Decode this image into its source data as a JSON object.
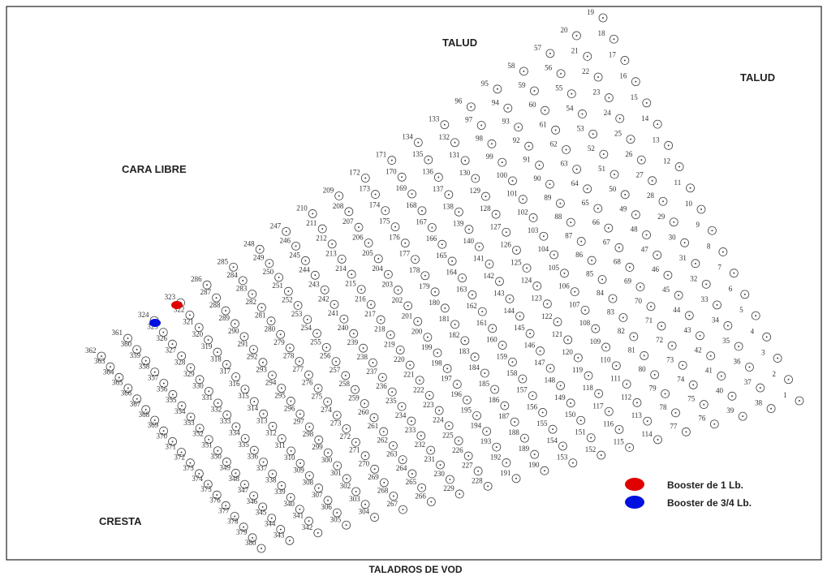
{
  "labels": {
    "talud_top": "TALUD",
    "talud_right": "TALUD",
    "cara_libre": "CARA LIBRE",
    "cresta": "CRESTA"
  },
  "legend": {
    "red": "Booster de 1 Lb.",
    "blue": "Booster de 3/4 Lb."
  },
  "caption": "TALADROS DE VOD",
  "columns": [
    [
      19,
      18,
      17,
      16,
      15,
      14,
      13,
      12,
      11,
      10,
      9,
      8,
      7,
      6,
      5,
      4,
      3,
      2,
      1
    ],
    [
      20,
      21,
      22,
      23,
      24,
      25,
      26,
      27,
      28,
      29,
      30,
      31,
      32,
      33,
      34,
      35,
      36,
      37,
      38
    ],
    [
      57,
      56,
      55,
      54,
      53,
      52,
      51,
      50,
      49,
      48,
      47,
      46,
      45,
      44,
      43,
      42,
      41,
      40,
      39
    ],
    [
      58,
      59,
      60,
      61,
      62,
      63,
      64,
      65,
      66,
      67,
      68,
      69,
      70,
      71,
      72,
      73,
      74,
      75,
      76
    ],
    [
      95,
      94,
      93,
      92,
      91,
      90,
      89,
      88,
      87,
      86,
      85,
      84,
      83,
      82,
      81,
      80,
      79,
      78,
      77
    ],
    [
      96,
      97,
      98,
      99,
      100,
      101,
      102,
      103,
      104,
      105,
      106,
      107,
      108,
      109,
      110,
      111,
      112,
      113,
      114
    ],
    [
      133,
      132,
      131,
      130,
      129,
      128,
      127,
      126,
      125,
      124,
      123,
      122,
      121,
      120,
      119,
      118,
      117,
      116,
      115
    ],
    [
      134,
      135,
      136,
      137,
      138,
      139,
      140,
      141,
      142,
      143,
      144,
      145,
      146,
      147,
      148,
      149,
      150,
      151,
      152
    ],
    [
      171,
      170,
      169,
      168,
      167,
      166,
      165,
      164,
      163,
      162,
      161,
      160,
      159,
      158,
      157,
      156,
      155,
      154,
      153
    ],
    [
      172,
      173,
      174,
      175,
      176,
      177,
      178,
      179,
      180,
      181,
      182,
      183,
      184,
      185,
      186,
      187,
      188,
      189,
      190
    ],
    [
      209,
      208,
      207,
      206,
      205,
      204,
      203,
      202,
      201,
      200,
      199,
      198,
      197,
      196,
      195,
      194,
      193,
      192,
      191
    ],
    [
      210,
      211,
      212,
      213,
      214,
      215,
      216,
      217,
      218,
      219,
      220,
      221,
      222,
      223,
      224,
      225,
      226,
      227,
      228
    ],
    [
      247,
      246,
      245,
      244,
      243,
      242,
      241,
      240,
      239,
      238,
      237,
      236,
      235,
      234,
      233,
      232,
      231,
      230,
      229
    ],
    [
      248,
      249,
      250,
      251,
      252,
      253,
      254,
      255,
      256,
      257,
      258,
      259,
      260,
      261,
      262,
      263,
      264,
      265,
      266
    ],
    [
      285,
      284,
      283,
      282,
      281,
      280,
      279,
      278,
      277,
      276,
      275,
      274,
      273,
      272,
      271,
      270,
      269,
      268,
      267
    ],
    [
      286,
      287,
      288,
      289,
      290,
      291,
      292,
      293,
      294,
      295,
      296,
      297,
      298,
      299,
      300,
      301,
      302,
      303,
      304
    ],
    [
      323,
      322,
      321,
      320,
      319,
      318,
      317,
      316,
      315,
      314,
      313,
      312,
      311,
      310,
      309,
      308,
      307,
      306,
      305
    ],
    [
      324,
      325,
      326,
      327,
      328,
      329,
      330,
      331,
      332,
      333,
      334,
      335,
      336,
      337,
      338,
      339,
      340,
      341,
      342
    ],
    [
      361,
      360,
      359,
      358,
      357,
      356,
      355,
      354,
      353,
      352,
      351,
      350,
      349,
      348,
      347,
      346,
      345,
      344,
      343
    ],
    [
      362,
      363,
      364,
      365,
      366,
      367,
      368,
      369,
      370,
      371,
      372,
      373,
      374,
      375,
      376,
      377,
      378,
      379,
      380
    ]
  ]
}
